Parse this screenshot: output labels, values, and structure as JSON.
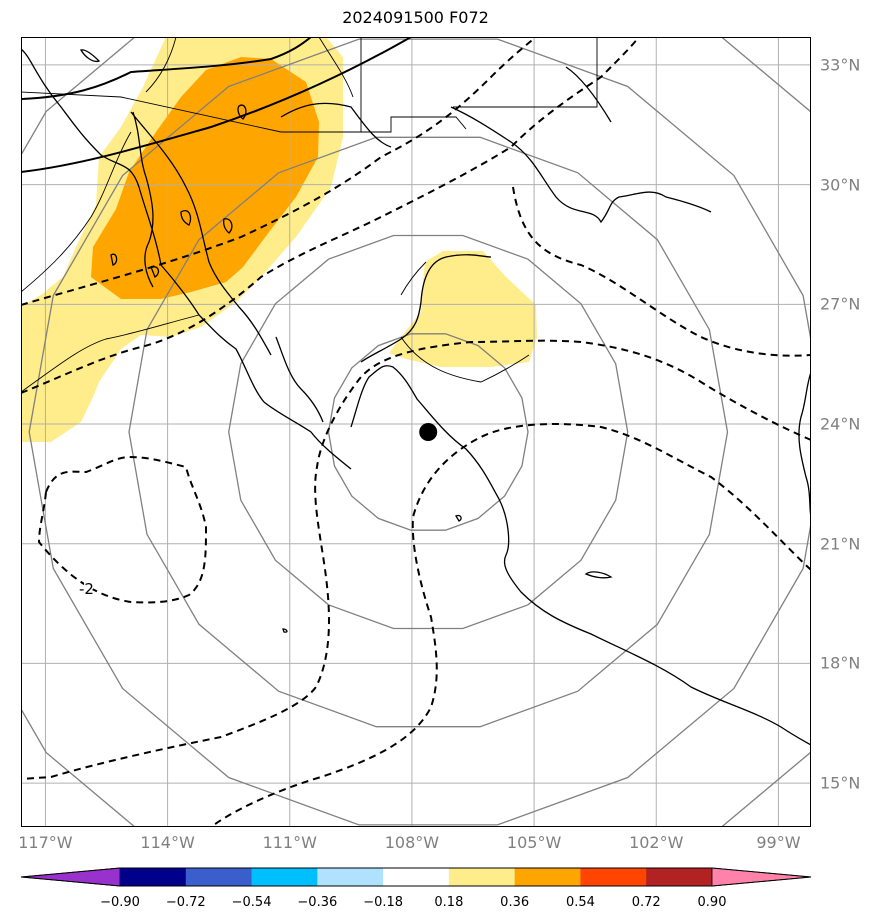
{
  "title": "2024091500 F072",
  "map": {
    "center_lon": -107.6,
    "center_lat": 23.8,
    "lon_range": [
      -117.6,
      -98.2
    ],
    "lat_range": [
      13.9,
      33.7
    ],
    "gridlines": true,
    "range_ring_step_deg": 2.5,
    "contour_label": "-2",
    "storm_marker_color": "#000000"
  },
  "lat_ticks": [
    {
      "value": 33,
      "label": "33°N"
    },
    {
      "value": 30,
      "label": "30°N"
    },
    {
      "value": 27,
      "label": "27°N"
    },
    {
      "value": 24,
      "label": "24°N"
    },
    {
      "value": 21,
      "label": "21°N"
    },
    {
      "value": 18,
      "label": "18°N"
    },
    {
      "value": 15,
      "label": "15°N"
    }
  ],
  "lon_ticks": [
    {
      "value": -117,
      "label": "117°W"
    },
    {
      "value": -114,
      "label": "114°W"
    },
    {
      "value": -111,
      "label": "111°W"
    },
    {
      "value": -108,
      "label": "108°W"
    },
    {
      "value": -105,
      "label": "105°W"
    },
    {
      "value": -102,
      "label": "102°W"
    },
    {
      "value": -99,
      "label": "99°W"
    }
  ],
  "colorbar": {
    "colors": [
      "#9932cc",
      "#00008b",
      "#3a5fcd",
      "#00bfff",
      "#b0e2ff",
      "#ffffff",
      "#ffec8b",
      "#ffa500",
      "#ff4500",
      "#b22222",
      "#ff82ab"
    ],
    "ticks": [
      "−0.90",
      "−0.72",
      "−0.54",
      "−0.36",
      "−0.18",
      "0.18",
      "0.36",
      "0.54",
      "0.72",
      "0.90"
    ]
  },
  "fill_colors": {
    "light": "#ffec8b",
    "orange": "#ffa500"
  }
}
